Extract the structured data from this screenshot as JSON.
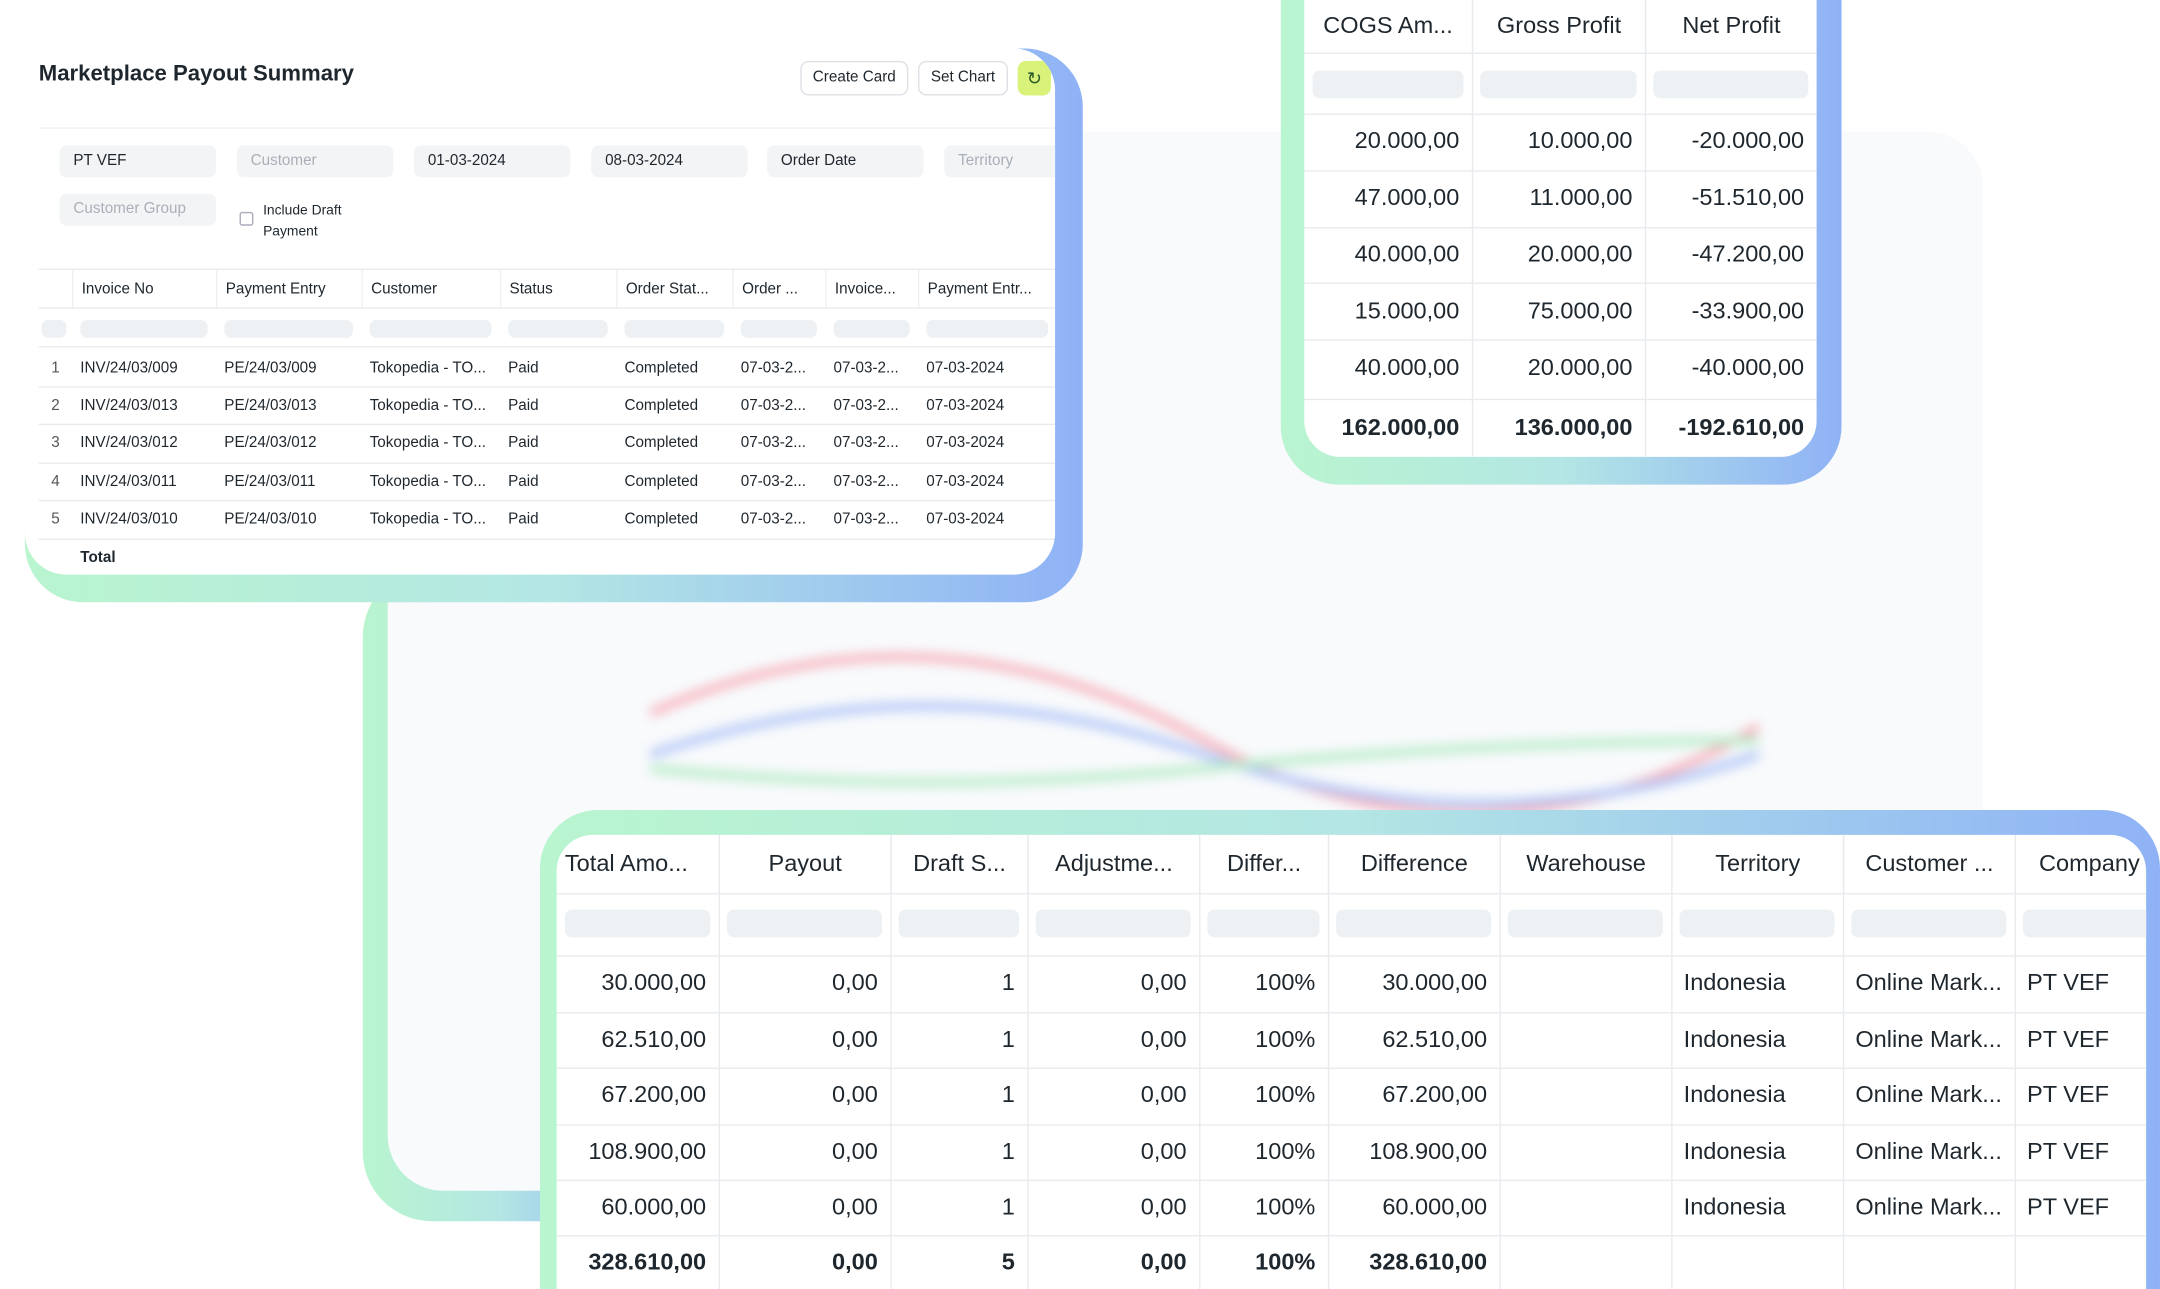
{
  "main_card": {
    "title": "Marketplace Payout Summary",
    "buttons": [
      "Create Card",
      "Set Chart"
    ],
    "filters": [
      {
        "text": "PT VEF",
        "placeholder": false
      },
      {
        "text": "Customer",
        "placeholder": true
      },
      {
        "text": "01-03-2024",
        "placeholder": false
      },
      {
        "text": "08-03-2024",
        "placeholder": false
      },
      {
        "text": "Order Date",
        "placeholder": false
      },
      {
        "text": "Territory",
        "placeholder": true
      },
      {
        "text": "Customer Group",
        "placeholder": true
      }
    ],
    "checkbox_label": "Include Draft Payment",
    "table": {
      "headers": [
        "Invoice No",
        "Payment Entry",
        "Customer",
        "Status",
        "Order Stat...",
        "Order ...",
        "Invoice...",
        "Payment Entr..."
      ],
      "rows": [
        [
          "1",
          "INV/24/03/009",
          "PE/24/03/009",
          "Tokopedia - TO...",
          "Paid",
          "Completed",
          "07-03-2...",
          "07-03-2...",
          "07-03-2024"
        ],
        [
          "2",
          "INV/24/03/013",
          "PE/24/03/013",
          "Tokopedia - TO...",
          "Paid",
          "Completed",
          "07-03-2...",
          "07-03-2...",
          "07-03-2024"
        ],
        [
          "3",
          "INV/24/03/012",
          "PE/24/03/012",
          "Tokopedia - TO...",
          "Paid",
          "Completed",
          "07-03-2...",
          "07-03-2...",
          "07-03-2024"
        ],
        [
          "4",
          "INV/24/03/011",
          "PE/24/03/011",
          "Tokopedia - TO...",
          "Paid",
          "Completed",
          "07-03-2...",
          "07-03-2...",
          "07-03-2024"
        ],
        [
          "5",
          "INV/24/03/010",
          "PE/24/03/010",
          "Tokopedia - TO...",
          "Paid",
          "Completed",
          "07-03-2...",
          "07-03-2...",
          "07-03-2024"
        ]
      ],
      "total_label": "Total"
    }
  },
  "profit_card": {
    "headers": [
      "COGS Am...",
      "Gross Profit",
      "Net Profit"
    ],
    "rows": [
      [
        "20.000,00",
        "10.000,00",
        "-20.000,00"
      ],
      [
        "47.000,00",
        "11.000,00",
        "-51.510,00"
      ],
      [
        "40.000,00",
        "20.000,00",
        "-47.200,00"
      ],
      [
        "15.000,00",
        "75.000,00",
        "-33.900,00"
      ],
      [
        "40.000,00",
        "20.000,00",
        "-40.000,00"
      ]
    ],
    "totals": [
      "162.000,00",
      "136.000,00",
      "-192.610,00"
    ]
  },
  "payout_card": {
    "headers": [
      "Total Amo...",
      "Payout",
      "Draft S...",
      "Adjustme...",
      "Differ...",
      "Difference",
      "Warehouse",
      "Territory",
      "Customer ...",
      "Company"
    ],
    "rows": [
      [
        "30.000,00",
        "0,00",
        "1",
        "0,00",
        "100%",
        "30.000,00",
        null,
        "Indonesia",
        "Online Mark...",
        "PT VEF"
      ],
      [
        "62.510,00",
        "0,00",
        "1",
        "0,00",
        "100%",
        "62.510,00",
        null,
        "Indonesia",
        "Online Mark...",
        "PT VEF"
      ],
      [
        "67.200,00",
        "0,00",
        "1",
        "0,00",
        "100%",
        "67.200,00",
        null,
        "Indonesia",
        "Online Mark...",
        "PT VEF"
      ],
      [
        "108.900,00",
        "0,00",
        "1",
        "0,00",
        "100%",
        "108.900,00",
        null,
        "Indonesia",
        "Online Mark...",
        "PT VEF"
      ],
      [
        "60.000,00",
        "0,00",
        "1",
        "0,00",
        "100%",
        "60.000,00",
        null,
        "Indonesia",
        "Online Mark...",
        "PT VEF"
      ]
    ],
    "totals": [
      "328.610,00",
      "0,00",
      "5",
      "0,00",
      "100%",
      "328.610,00",
      null,
      null,
      null,
      null
    ]
  }
}
